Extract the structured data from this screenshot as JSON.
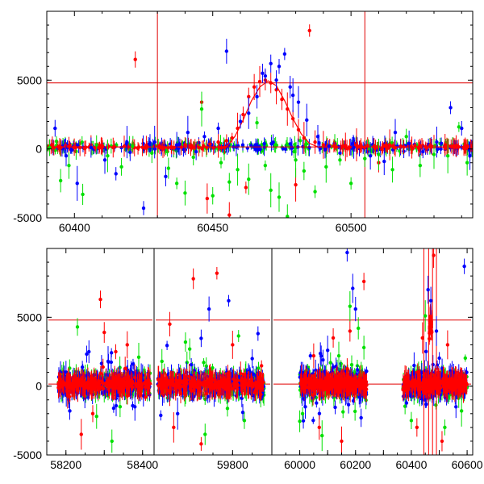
{
  "chart_data": [
    {
      "type": "scatter",
      "title": "",
      "xlabel": "",
      "ylabel": "",
      "xlim": [
        60390,
        60544
      ],
      "ylim": [
        -5000,
        10000
      ],
      "xticks": [
        60400,
        60450,
        60500
      ],
      "xtick_labels": [
        "60400",
        "60450",
        "60500"
      ],
      "yticks": [
        -5000,
        0,
        5000
      ],
      "ytick_labels": [
        "-5000",
        "0",
        "5000"
      ],
      "grid": false,
      "legend": "none",
      "hlines": [
        4800,
        150
      ],
      "vlines": [
        60430,
        60505
      ],
      "series": [
        {
          "color": "#ff0000",
          "marker": "point-errorbar",
          "points": [
            [
              60392,
              300
            ],
            [
              60398,
              200
            ],
            [
              60402,
              100
            ],
            [
              60406,
              300
            ],
            [
              60410,
              250
            ],
            [
              60414,
              100
            ],
            [
              60418,
              200
            ],
            [
              60422,
              6500
            ],
            [
              60426,
              250
            ],
            [
              60432,
              0
            ],
            [
              60436,
              100
            ],
            [
              60440,
              300
            ],
            [
              60445,
              100
            ],
            [
              60449,
              350
            ],
            [
              60452,
              500
            ],
            [
              60455,
              600
            ],
            [
              60457,
              800
            ],
            [
              60459,
              1500
            ],
            [
              60461,
              2500
            ],
            [
              60463,
              3800
            ],
            [
              60465,
              4500
            ],
            [
              60467,
              4900
            ],
            [
              60469,
              5000
            ],
            [
              60471,
              4800
            ],
            [
              60473,
              4300
            ],
            [
              60475,
              3600
            ],
            [
              60477,
              2900
            ],
            [
              60479,
              2200
            ],
            [
              60481,
              1400
            ],
            [
              60483,
              800
            ],
            [
              60485,
              8600
            ],
            [
              60487,
              500
            ],
            [
              60490,
              300
            ],
            [
              60494,
              200
            ],
            [
              60498,
              150
            ],
            [
              60502,
              300
            ],
            [
              60506,
              250
            ],
            [
              60510,
              -1000
            ],
            [
              60514,
              300
            ],
            [
              60518,
              200
            ],
            [
              60522,
              100
            ],
            [
              60526,
              250
            ],
            [
              60530,
              150
            ],
            [
              60534,
              300
            ],
            [
              60538,
              200
            ],
            [
              60542,
              100
            ],
            [
              60448,
              -3600
            ],
            [
              60456,
              -4800
            ],
            [
              60462,
              -2800
            ],
            [
              60480,
              -2600
            ],
            [
              60446,
              3400
            ]
          ],
          "model_curve": [
            [
              60390,
              150
            ],
            [
              60455,
              150
            ],
            [
              60458,
              900
            ],
            [
              60461,
              2100
            ],
            [
              60464,
              3500
            ],
            [
              60467,
              4500
            ],
            [
              60470,
              4950
            ],
            [
              60473,
              4600
            ],
            [
              60476,
              3500
            ],
            [
              60479,
              2200
            ],
            [
              60482,
              1100
            ],
            [
              60485,
              400
            ],
            [
              60488,
              150
            ],
            [
              60544,
              150
            ]
          ]
        },
        {
          "color": "#0000ff",
          "marker": "point-errorbar",
          "points": [
            [
              60393,
              1500
            ],
            [
              60397,
              -500
            ],
            [
              60401,
              -2500
            ],
            [
              60406,
              100
            ],
            [
              60411,
              -800
            ],
            [
              60415,
              -1800
            ],
            [
              60419,
              500
            ],
            [
              60425,
              -4300
            ],
            [
              60429,
              500
            ],
            [
              60433,
              -2000
            ],
            [
              60437,
              300
            ],
            [
              60441,
              1200
            ],
            [
              60444,
              -200
            ],
            [
              60447,
              900
            ],
            [
              60452,
              1500
            ],
            [
              60455,
              7100
            ],
            [
              60460,
              2000
            ],
            [
              60463,
              2600
            ],
            [
              60466,
              3800
            ],
            [
              60469,
              5300
            ],
            [
              60471,
              6200
            ],
            [
              60473,
              5000
            ],
            [
              60476,
              6900
            ],
            [
              60478,
              4500
            ],
            [
              60481,
              3400
            ],
            [
              60484,
              2100
            ],
            [
              60488,
              900
            ],
            [
              60492,
              200
            ],
            [
              60496,
              -300
            ],
            [
              60501,
              100
            ],
            [
              60507,
              -500
            ],
            [
              60512,
              -900
            ],
            [
              60516,
              1200
            ],
            [
              60521,
              400
            ],
            [
              60526,
              -200
            ],
            [
              60531,
              500
            ],
            [
              60536,
              3000
            ],
            [
              60540,
              1500
            ],
            [
              60543,
              -500
            ],
            [
              60468,
              5500
            ],
            [
              60474,
              6000
            ],
            [
              60479,
              3900
            ]
          ]
        },
        {
          "color": "#00e000",
          "marker": "point-errorbar",
          "points": [
            [
              60391,
              100
            ],
            [
              60395,
              -2300
            ],
            [
              60398,
              -1200
            ],
            [
              60403,
              -3300
            ],
            [
              60408,
              300
            ],
            [
              60412,
              -500
            ],
            [
              60417,
              -1300
            ],
            [
              60421,
              200
            ],
            [
              60428,
              -300
            ],
            [
              60434,
              -1400
            ],
            [
              60437,
              -2500
            ],
            [
              60440,
              -3200
            ],
            [
              60443,
              -600
            ],
            [
              60446,
              2900
            ],
            [
              60450,
              -3400
            ],
            [
              60453,
              -1000
            ],
            [
              60456,
              -2400
            ],
            [
              60459,
              -1500
            ],
            [
              60463,
              -2200
            ],
            [
              60466,
              1900
            ],
            [
              60469,
              -1200
            ],
            [
              60471,
              -3000
            ],
            [
              60474,
              -3500
            ],
            [
              60477,
              -4900
            ],
            [
              60480,
              -800
            ],
            [
              60483,
              -1600
            ],
            [
              60487,
              -3100
            ],
            [
              60491,
              -1300
            ],
            [
              60496,
              -800
            ],
            [
              60500,
              -2500
            ],
            [
              60505,
              -700
            ],
            [
              60510,
              -400
            ],
            [
              60515,
              -1500
            ],
            [
              60520,
              900
            ],
            [
              60525,
              -1200
            ],
            [
              60530,
              -400
            ],
            [
              60535,
              -500
            ],
            [
              60539,
              1600
            ],
            [
              60542,
              -1000
            ]
          ]
        }
      ]
    },
    {
      "type": "scatter",
      "title": "",
      "xlabel": "",
      "ylabel": "",
      "ylim": [
        -5000,
        10000
      ],
      "yticks": [
        -5000,
        0,
        5000
      ],
      "ytick_labels": [
        "-5000",
        "0",
        "5000"
      ],
      "grid": false,
      "legend": "none",
      "hlines": [
        4800,
        150
      ],
      "segments": [
        {
          "xlim": [
            58150,
            58430
          ],
          "xticks": [
            58200,
            58300,
            58400
          ],
          "xtick_labels": [
            "58200",
            "",
            "58400"
          ]
        },
        {
          "xlim": [
            59600,
            59900
          ],
          "xticks": [
            59800
          ],
          "xtick_labels": [
            "59800"
          ]
        },
        {
          "xlim": [
            59900,
            60620
          ],
          "xticks": [
            60000,
            60100,
            60200,
            60300,
            60400,
            60500,
            60600
          ],
          "xtick_labels": [
            "60000",
            "",
            "60200",
            "",
            "60400",
            "",
            "60600"
          ]
        }
      ],
      "clusters": [
        {
          "segment": 0,
          "x_range": [
            58180,
            58420
          ],
          "spread": 1300
        },
        {
          "segment": 1,
          "x_range": [
            59610,
            59880
          ],
          "spread": 1400
        },
        {
          "segment": 2,
          "x_range": [
            60000,
            60240
          ],
          "spread": 1400
        },
        {
          "segment": 2,
          "x_range": [
            60370,
            60600
          ],
          "spread": 1300
        }
      ],
      "peak": {
        "x": 60469,
        "y": 5000
      },
      "series": [
        {
          "color": "#ff0000",
          "marker": "point-errorbar",
          "outliers": [
            [
              58290,
              6300
            ],
            [
              58300,
              3900
            ],
            [
              58330,
              2500
            ],
            [
              58360,
              3000
            ],
            [
              58270,
              -2000
            ],
            [
              58240,
              -3500
            ],
            [
              59640,
              4500
            ],
            [
              59700,
              7800
            ],
            [
              59760,
              8200
            ],
            [
              59800,
              3000
            ],
            [
              59650,
              -3000
            ],
            [
              59720,
              -4200
            ],
            [
              60050,
              2200
            ],
            [
              60120,
              3500
            ],
            [
              60180,
              4000
            ],
            [
              60230,
              7600
            ],
            [
              60070,
              -3000
            ],
            [
              60150,
              -4000
            ],
            [
              60440,
              3500
            ],
            [
              60480,
              9500
            ],
            [
              60530,
              3000
            ],
            [
              60420,
              -3000
            ],
            [
              60510,
              -4000
            ]
          ]
        },
        {
          "color": "#0000ff",
          "marker": "point-errorbar",
          "outliers": [
            [
              58210,
              -1800
            ],
            [
              58260,
              2500
            ],
            [
              58310,
              1800
            ],
            [
              58380,
              -1500
            ],
            [
              59660,
              -2000
            ],
            [
              59740,
              5600
            ],
            [
              59790,
              6200
            ],
            [
              59850,
              2000
            ],
            [
              60020,
              -1500
            ],
            [
              60100,
              2600
            ],
            [
              60170,
              9700
            ],
            [
              60190,
              7100
            ],
            [
              60200,
              5600
            ],
            [
              60220,
              -2300
            ],
            [
              60410,
              1500
            ],
            [
              60460,
              7000
            ],
            [
              60470,
              6200
            ],
            [
              60490,
              4000
            ],
            [
              60590,
              8700
            ],
            [
              60560,
              -1500
            ]
          ]
        },
        {
          "color": "#00e000",
          "marker": "point-errorbar",
          "outliers": [
            [
              58230,
              4300
            ],
            [
              58280,
              -2200
            ],
            [
              58320,
              -4000
            ],
            [
              58390,
              2100
            ],
            [
              59620,
              1800
            ],
            [
              59680,
              3200
            ],
            [
              59730,
              -3500
            ],
            [
              59830,
              -2500
            ],
            [
              60010,
              -2000
            ],
            [
              60080,
              -3600
            ],
            [
              60140,
              2200
            ],
            [
              60210,
              4200
            ],
            [
              60230,
              2800
            ],
            [
              60400,
              -2500
            ],
            [
              60450,
              5100
            ],
            [
              60520,
              -3000
            ],
            [
              60580,
              -1800
            ],
            [
              60180,
              5800
            ]
          ]
        }
      ]
    }
  ]
}
